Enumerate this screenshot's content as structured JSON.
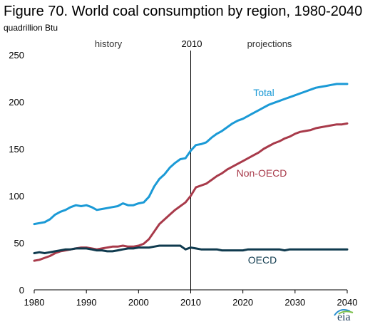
{
  "figure": {
    "title": "Figure 70.  World coal consumption  by region, 1980-2040",
    "units": "quadrillion Btu"
  },
  "annotations": {
    "history": "history",
    "divider_year": "2010",
    "projections": "projections"
  },
  "logo": {
    "text": "eia"
  },
  "colors": {
    "total": "#1b9ad6",
    "non_oecd": "#a83a4a",
    "oecd": "#0f3a4e",
    "axis": "#000000"
  },
  "chart_data": {
    "type": "line",
    "title": "Figure 70.  World coal consumption  by region, 1980-2040",
    "ylabel": "quadrillion Btu",
    "xlim": [
      1980,
      2040
    ],
    "ylim": [
      0,
      250
    ],
    "x_ticks": [
      1980,
      1990,
      2000,
      2010,
      2020,
      2030,
      2040
    ],
    "y_ticks": [
      0,
      50,
      100,
      150,
      200,
      250
    ],
    "vertical_line_x": 2010,
    "grid": false,
    "series": [
      {
        "name": "Total",
        "color": "#1b9ad6",
        "x": [
          1980,
          1981,
          1982,
          1983,
          1984,
          1985,
          1986,
          1987,
          1988,
          1989,
          1990,
          1991,
          1992,
          1993,
          1994,
          1995,
          1996,
          1997,
          1998,
          1999,
          2000,
          2001,
          2002,
          2003,
          2004,
          2005,
          2006,
          2007,
          2008,
          2009,
          2010,
          2011,
          2012,
          2013,
          2014,
          2015,
          2016,
          2017,
          2018,
          2019,
          2020,
          2021,
          2022,
          2023,
          2024,
          2025,
          2026,
          2027,
          2028,
          2029,
          2030,
          2031,
          2032,
          2033,
          2034,
          2035,
          2036,
          2037,
          2038,
          2039,
          2040
        ],
        "values": [
          70,
          71,
          72,
          75,
          80,
          83,
          85,
          88,
          90,
          89,
          90,
          88,
          85,
          86,
          87,
          88,
          89,
          92,
          90,
          90,
          92,
          93,
          99,
          110,
          118,
          123,
          130,
          135,
          139,
          140,
          148,
          154,
          155,
          157,
          162,
          166,
          169,
          173,
          177,
          180,
          182,
          185,
          188,
          191,
          194,
          197,
          199,
          201,
          203,
          205,
          207,
          209,
          211,
          213,
          215,
          216,
          217,
          218,
          219,
          219,
          219
        ]
      },
      {
        "name": "Non-OECD",
        "color": "#a83a4a",
        "x": [
          1980,
          1981,
          1982,
          1983,
          1984,
          1985,
          1986,
          1987,
          1988,
          1989,
          1990,
          1991,
          1992,
          1993,
          1994,
          1995,
          1996,
          1997,
          1998,
          1999,
          2000,
          2001,
          2002,
          2003,
          2004,
          2005,
          2006,
          2007,
          2008,
          2009,
          2010,
          2011,
          2012,
          2013,
          2014,
          2015,
          2016,
          2017,
          2018,
          2019,
          2020,
          2021,
          2022,
          2023,
          2024,
          2025,
          2026,
          2027,
          2028,
          2029,
          2030,
          2031,
          2032,
          2033,
          2034,
          2035,
          2036,
          2037,
          2038,
          2039,
          2040
        ],
        "values": [
          31,
          32,
          34,
          36,
          39,
          41,
          42,
          43,
          44,
          45,
          45,
          44,
          43,
          44,
          45,
          46,
          46,
          47,
          46,
          46,
          47,
          49,
          54,
          62,
          70,
          75,
          80,
          85,
          89,
          93,
          100,
          109,
          111,
          113,
          117,
          121,
          124,
          128,
          131,
          134,
          137,
          140,
          143,
          146,
          150,
          153,
          156,
          158,
          161,
          163,
          166,
          168,
          169,
          170,
          172,
          173,
          174,
          175,
          176,
          176,
          177
        ]
      },
      {
        "name": "OECD",
        "color": "#0f3a4e",
        "x": [
          1980,
          1981,
          1982,
          1983,
          1984,
          1985,
          1986,
          1987,
          1988,
          1989,
          1990,
          1991,
          1992,
          1993,
          1994,
          1995,
          1996,
          1997,
          1998,
          1999,
          2000,
          2001,
          2002,
          2003,
          2004,
          2005,
          2006,
          2007,
          2008,
          2009,
          2010,
          2011,
          2012,
          2013,
          2014,
          2015,
          2016,
          2017,
          2018,
          2019,
          2020,
          2021,
          2022,
          2023,
          2024,
          2025,
          2026,
          2027,
          2028,
          2029,
          2030,
          2031,
          2032,
          2033,
          2034,
          2035,
          2036,
          2037,
          2038,
          2039,
          2040
        ],
        "values": [
          39,
          40,
          39,
          40,
          41,
          42,
          43,
          43,
          44,
          44,
          44,
          43,
          42,
          42,
          41,
          41,
          42,
          43,
          44,
          44,
          45,
          45,
          45,
          46,
          47,
          47,
          47,
          47,
          47,
          43,
          45,
          44,
          43,
          43,
          43,
          43,
          42,
          42,
          42,
          42,
          42,
          43,
          43,
          43,
          43,
          43,
          43,
          43,
          42,
          43,
          43,
          43,
          43,
          43,
          43,
          43,
          43,
          43,
          43,
          43,
          43
        ]
      }
    ]
  }
}
